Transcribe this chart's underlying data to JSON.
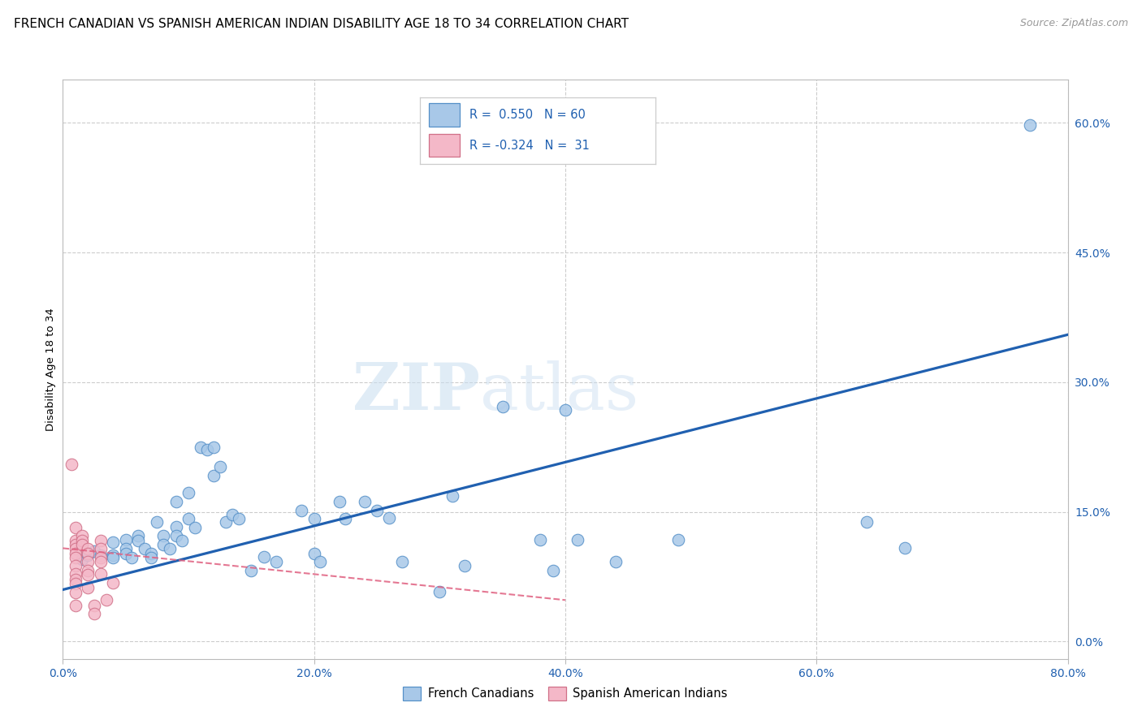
{
  "title": "FRENCH CANADIAN VS SPANISH AMERICAN INDIAN DISABILITY AGE 18 TO 34 CORRELATION CHART",
  "source": "Source: ZipAtlas.com",
  "ylabel": "Disability Age 18 to 34",
  "xlim": [
    0.0,
    0.8
  ],
  "ylim": [
    -0.02,
    0.65
  ],
  "xticks": [
    0.0,
    0.2,
    0.4,
    0.6,
    0.8
  ],
  "xticklabels": [
    "0.0%",
    "20.0%",
    "40.0%",
    "60.0%",
    "80.0%"
  ],
  "yticks_right": [
    0.0,
    0.15,
    0.3,
    0.45,
    0.6
  ],
  "yticklabels_right": [
    "0.0%",
    "15.0%",
    "30.0%",
    "45.0%",
    "60.0%"
  ],
  "blue_color": "#a8c8e8",
  "pink_color": "#f4b8c8",
  "blue_edge_color": "#5590c8",
  "pink_edge_color": "#d07088",
  "blue_line_color": "#2060b0",
  "pink_line_color": "#e06080",
  "watermark_zip": "ZIP",
  "watermark_atlas": "atlas",
  "title_fontsize": 11,
  "label_fontsize": 9.5,
  "tick_fontsize": 10,
  "blue_scatter": [
    [
      0.015,
      0.095
    ],
    [
      0.02,
      0.1
    ],
    [
      0.025,
      0.105
    ],
    [
      0.03,
      0.1
    ],
    [
      0.04,
      0.115
    ],
    [
      0.04,
      0.1
    ],
    [
      0.04,
      0.097
    ],
    [
      0.05,
      0.118
    ],
    [
      0.05,
      0.107
    ],
    [
      0.05,
      0.102
    ],
    [
      0.055,
      0.097
    ],
    [
      0.06,
      0.122
    ],
    [
      0.06,
      0.117
    ],
    [
      0.065,
      0.107
    ],
    [
      0.07,
      0.102
    ],
    [
      0.07,
      0.097
    ],
    [
      0.075,
      0.138
    ],
    [
      0.08,
      0.122
    ],
    [
      0.08,
      0.112
    ],
    [
      0.085,
      0.107
    ],
    [
      0.09,
      0.162
    ],
    [
      0.09,
      0.133
    ],
    [
      0.09,
      0.122
    ],
    [
      0.095,
      0.117
    ],
    [
      0.1,
      0.172
    ],
    [
      0.1,
      0.142
    ],
    [
      0.105,
      0.132
    ],
    [
      0.11,
      0.225
    ],
    [
      0.115,
      0.222
    ],
    [
      0.12,
      0.192
    ],
    [
      0.12,
      0.225
    ],
    [
      0.125,
      0.202
    ],
    [
      0.13,
      0.138
    ],
    [
      0.135,
      0.147
    ],
    [
      0.14,
      0.142
    ],
    [
      0.15,
      0.082
    ],
    [
      0.16,
      0.098
    ],
    [
      0.17,
      0.092
    ],
    [
      0.19,
      0.152
    ],
    [
      0.2,
      0.142
    ],
    [
      0.2,
      0.102
    ],
    [
      0.205,
      0.092
    ],
    [
      0.22,
      0.162
    ],
    [
      0.225,
      0.142
    ],
    [
      0.24,
      0.162
    ],
    [
      0.25,
      0.152
    ],
    [
      0.26,
      0.143
    ],
    [
      0.27,
      0.092
    ],
    [
      0.3,
      0.058
    ],
    [
      0.31,
      0.168
    ],
    [
      0.32,
      0.088
    ],
    [
      0.35,
      0.272
    ],
    [
      0.38,
      0.118
    ],
    [
      0.39,
      0.082
    ],
    [
      0.4,
      0.268
    ],
    [
      0.41,
      0.118
    ],
    [
      0.44,
      0.092
    ],
    [
      0.49,
      0.118
    ],
    [
      0.64,
      0.138
    ],
    [
      0.67,
      0.108
    ],
    [
      0.77,
      0.598
    ]
  ],
  "pink_scatter": [
    [
      0.007,
      0.205
    ],
    [
      0.01,
      0.132
    ],
    [
      0.01,
      0.117
    ],
    [
      0.01,
      0.112
    ],
    [
      0.01,
      0.107
    ],
    [
      0.01,
      0.102
    ],
    [
      0.01,
      0.097
    ],
    [
      0.01,
      0.088
    ],
    [
      0.01,
      0.078
    ],
    [
      0.01,
      0.072
    ],
    [
      0.01,
      0.067
    ],
    [
      0.01,
      0.057
    ],
    [
      0.01,
      0.042
    ],
    [
      0.015,
      0.122
    ],
    [
      0.015,
      0.117
    ],
    [
      0.015,
      0.112
    ],
    [
      0.02,
      0.107
    ],
    [
      0.02,
      0.102
    ],
    [
      0.02,
      0.092
    ],
    [
      0.02,
      0.082
    ],
    [
      0.02,
      0.077
    ],
    [
      0.02,
      0.062
    ],
    [
      0.025,
      0.042
    ],
    [
      0.025,
      0.032
    ],
    [
      0.03,
      0.117
    ],
    [
      0.03,
      0.107
    ],
    [
      0.03,
      0.097
    ],
    [
      0.03,
      0.092
    ],
    [
      0.03,
      0.078
    ],
    [
      0.035,
      0.048
    ],
    [
      0.04,
      0.068
    ]
  ],
  "blue_line_x": [
    0.0,
    0.8
  ],
  "blue_line_y": [
    0.06,
    0.355
  ],
  "pink_line_x": [
    0.0,
    0.4
  ],
  "pink_line_y": [
    0.108,
    0.048
  ]
}
